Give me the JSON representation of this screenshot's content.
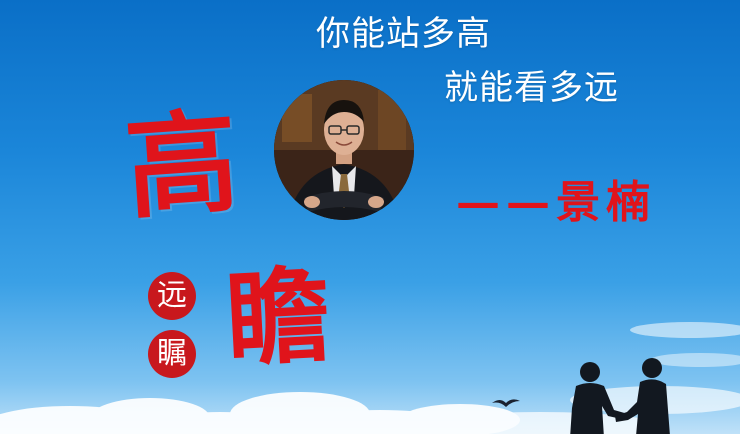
{
  "poster": {
    "line1": "你能站多高",
    "line2": "就能看多远",
    "big_char_1": "高",
    "big_char_2": "瞻",
    "seal_char_1": "远",
    "seal_char_2": "瞩",
    "author": "——景楠",
    "colors": {
      "sky_top": "#0a6fc7",
      "sky_bottom": "#bfe1f8",
      "calligraphy_red": "#e0141b",
      "seal_red": "#c8181d",
      "headline_white": "#ffffff"
    }
  }
}
